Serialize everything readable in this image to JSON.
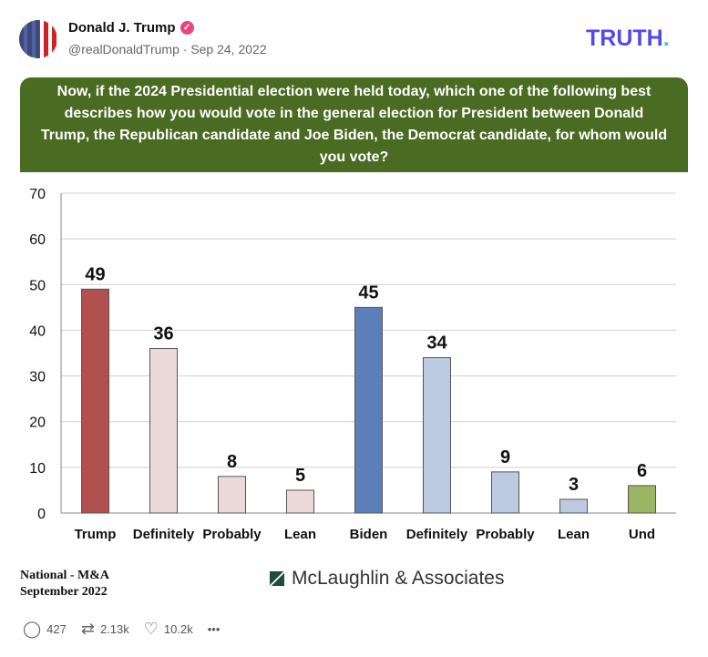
{
  "post": {
    "author": "Donald J. Trump",
    "verified": "verified-badge",
    "handle": "@realDonaldTrump",
    "separator": "·",
    "date": "Sep 24, 2022"
  },
  "brand": {
    "logo_main": "TRUTH",
    "logo_dot": "."
  },
  "footer": {
    "line1": "National - M&A",
    "line2": "September 2022",
    "pollster": "McLaughlin & Associates"
  },
  "actions": {
    "replies": "427",
    "retruths": "2.13k",
    "likes": "10.2k",
    "more": "•••"
  },
  "chart_data": {
    "type": "bar",
    "title": "Now, if the 2024 Presidential election were held today, which one of the following best describes how you would vote in the general election for President between Donald Trump, the Republican candidate and Joe Biden, the Democrat candidate, for whom would you vote?",
    "categories": [
      "Trump",
      "Definitely",
      "Probably",
      "Lean",
      "Biden",
      "Definitely",
      "Probably",
      "Lean",
      "Und"
    ],
    "values": [
      49,
      36,
      8,
      5,
      45,
      34,
      9,
      3,
      6
    ],
    "colors": [
      "#b0504f",
      "#ecdada",
      "#ecdada",
      "#ecdada",
      "#5a7fb9",
      "#bccbe1",
      "#bccbe1",
      "#bccbe1",
      "#9bb663"
    ],
    "ylim": [
      0,
      70
    ],
    "yticks": [
      0,
      10,
      20,
      30,
      40,
      50,
      60,
      70
    ],
    "grid": true,
    "xlabel": "",
    "ylabel": ""
  }
}
